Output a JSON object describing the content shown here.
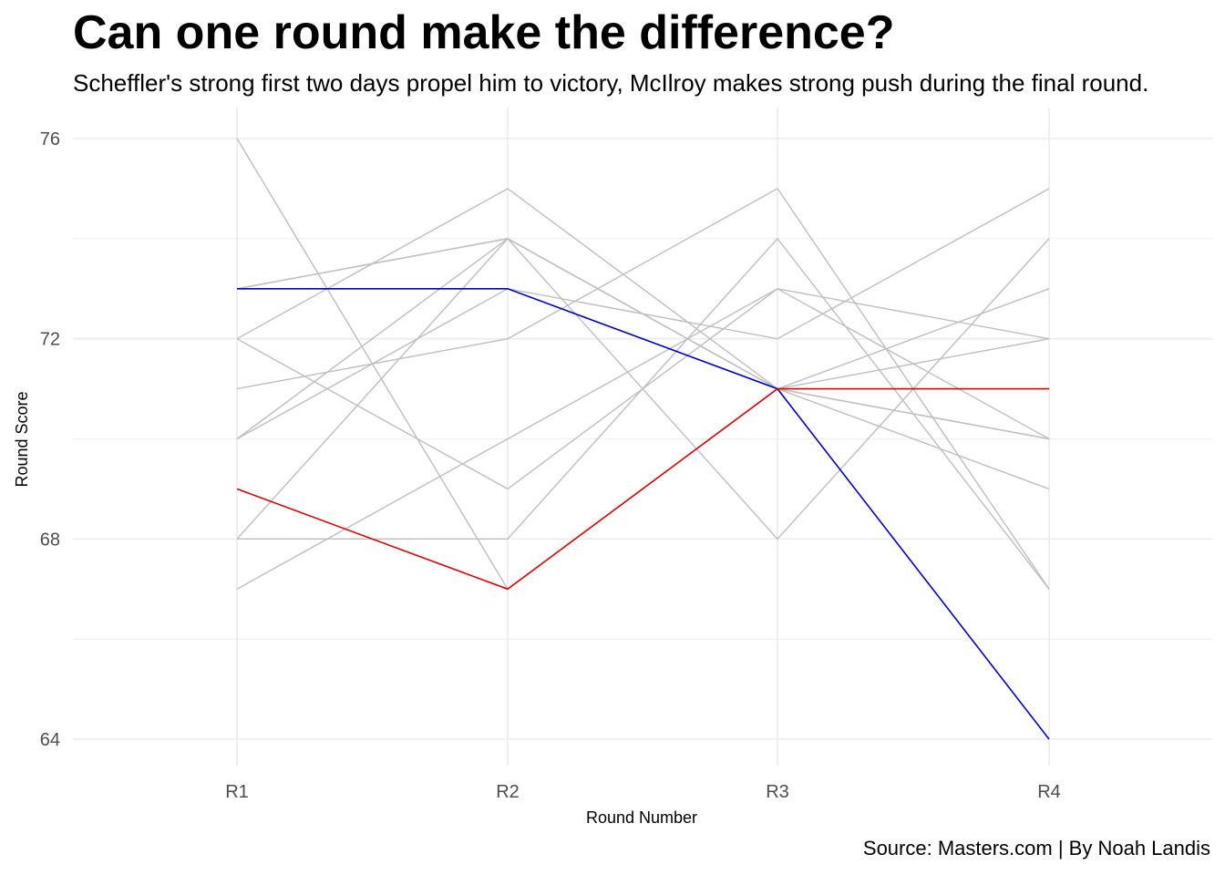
{
  "chart_data": {
    "type": "line",
    "title": "Can one round make the difference?",
    "subtitle": "Scheffler's strong first two days propel him to victory, McIlroy makes strong push during the final round.",
    "caption": "Source: Masters.com | By Noah Landis",
    "xlabel": "Round Number",
    "ylabel": "Round Score",
    "categories": [
      "R1",
      "R2",
      "R3",
      "R4"
    ],
    "ylim": [
      63.5,
      77
    ],
    "yticks": [
      64,
      68,
      72,
      76
    ],
    "grid": true,
    "colors": {
      "background": "#ffffff",
      "grid": "#ebebeb",
      "other": "#bebebe",
      "red": "#e00000",
      "blue": "#0000cc"
    },
    "series": [
      {
        "values": [
          76,
          67,
          71,
          72
        ],
        "color": "other"
      },
      {
        "values": [
          73,
          74,
          68,
          74
        ],
        "color": "other"
      },
      {
        "values": [
          73,
          74,
          71,
          70
        ],
        "color": "other"
      },
      {
        "values": [
          72,
          75,
          71,
          70
        ],
        "color": "other"
      },
      {
        "values": [
          72,
          69,
          73,
          70
        ],
        "color": "other"
      },
      {
        "values": [
          71,
          72,
          75,
          67
        ],
        "color": "other"
      },
      {
        "values": [
          70,
          73,
          72,
          75
        ],
        "color": "other"
      },
      {
        "values": [
          70,
          74,
          71,
          69
        ],
        "color": "other"
      },
      {
        "values": [
          68,
          74,
          71,
          73
        ],
        "color": "other"
      },
      {
        "values": [
          68,
          68,
          74,
          67
        ],
        "color": "other"
      },
      {
        "values": [
          67,
          70,
          73,
          72
        ],
        "color": "other"
      },
      {
        "values": [
          73,
          73,
          71,
          64
        ],
        "color": "blue"
      },
      {
        "values": [
          69,
          67,
          71,
          71
        ],
        "color": "red"
      }
    ]
  }
}
